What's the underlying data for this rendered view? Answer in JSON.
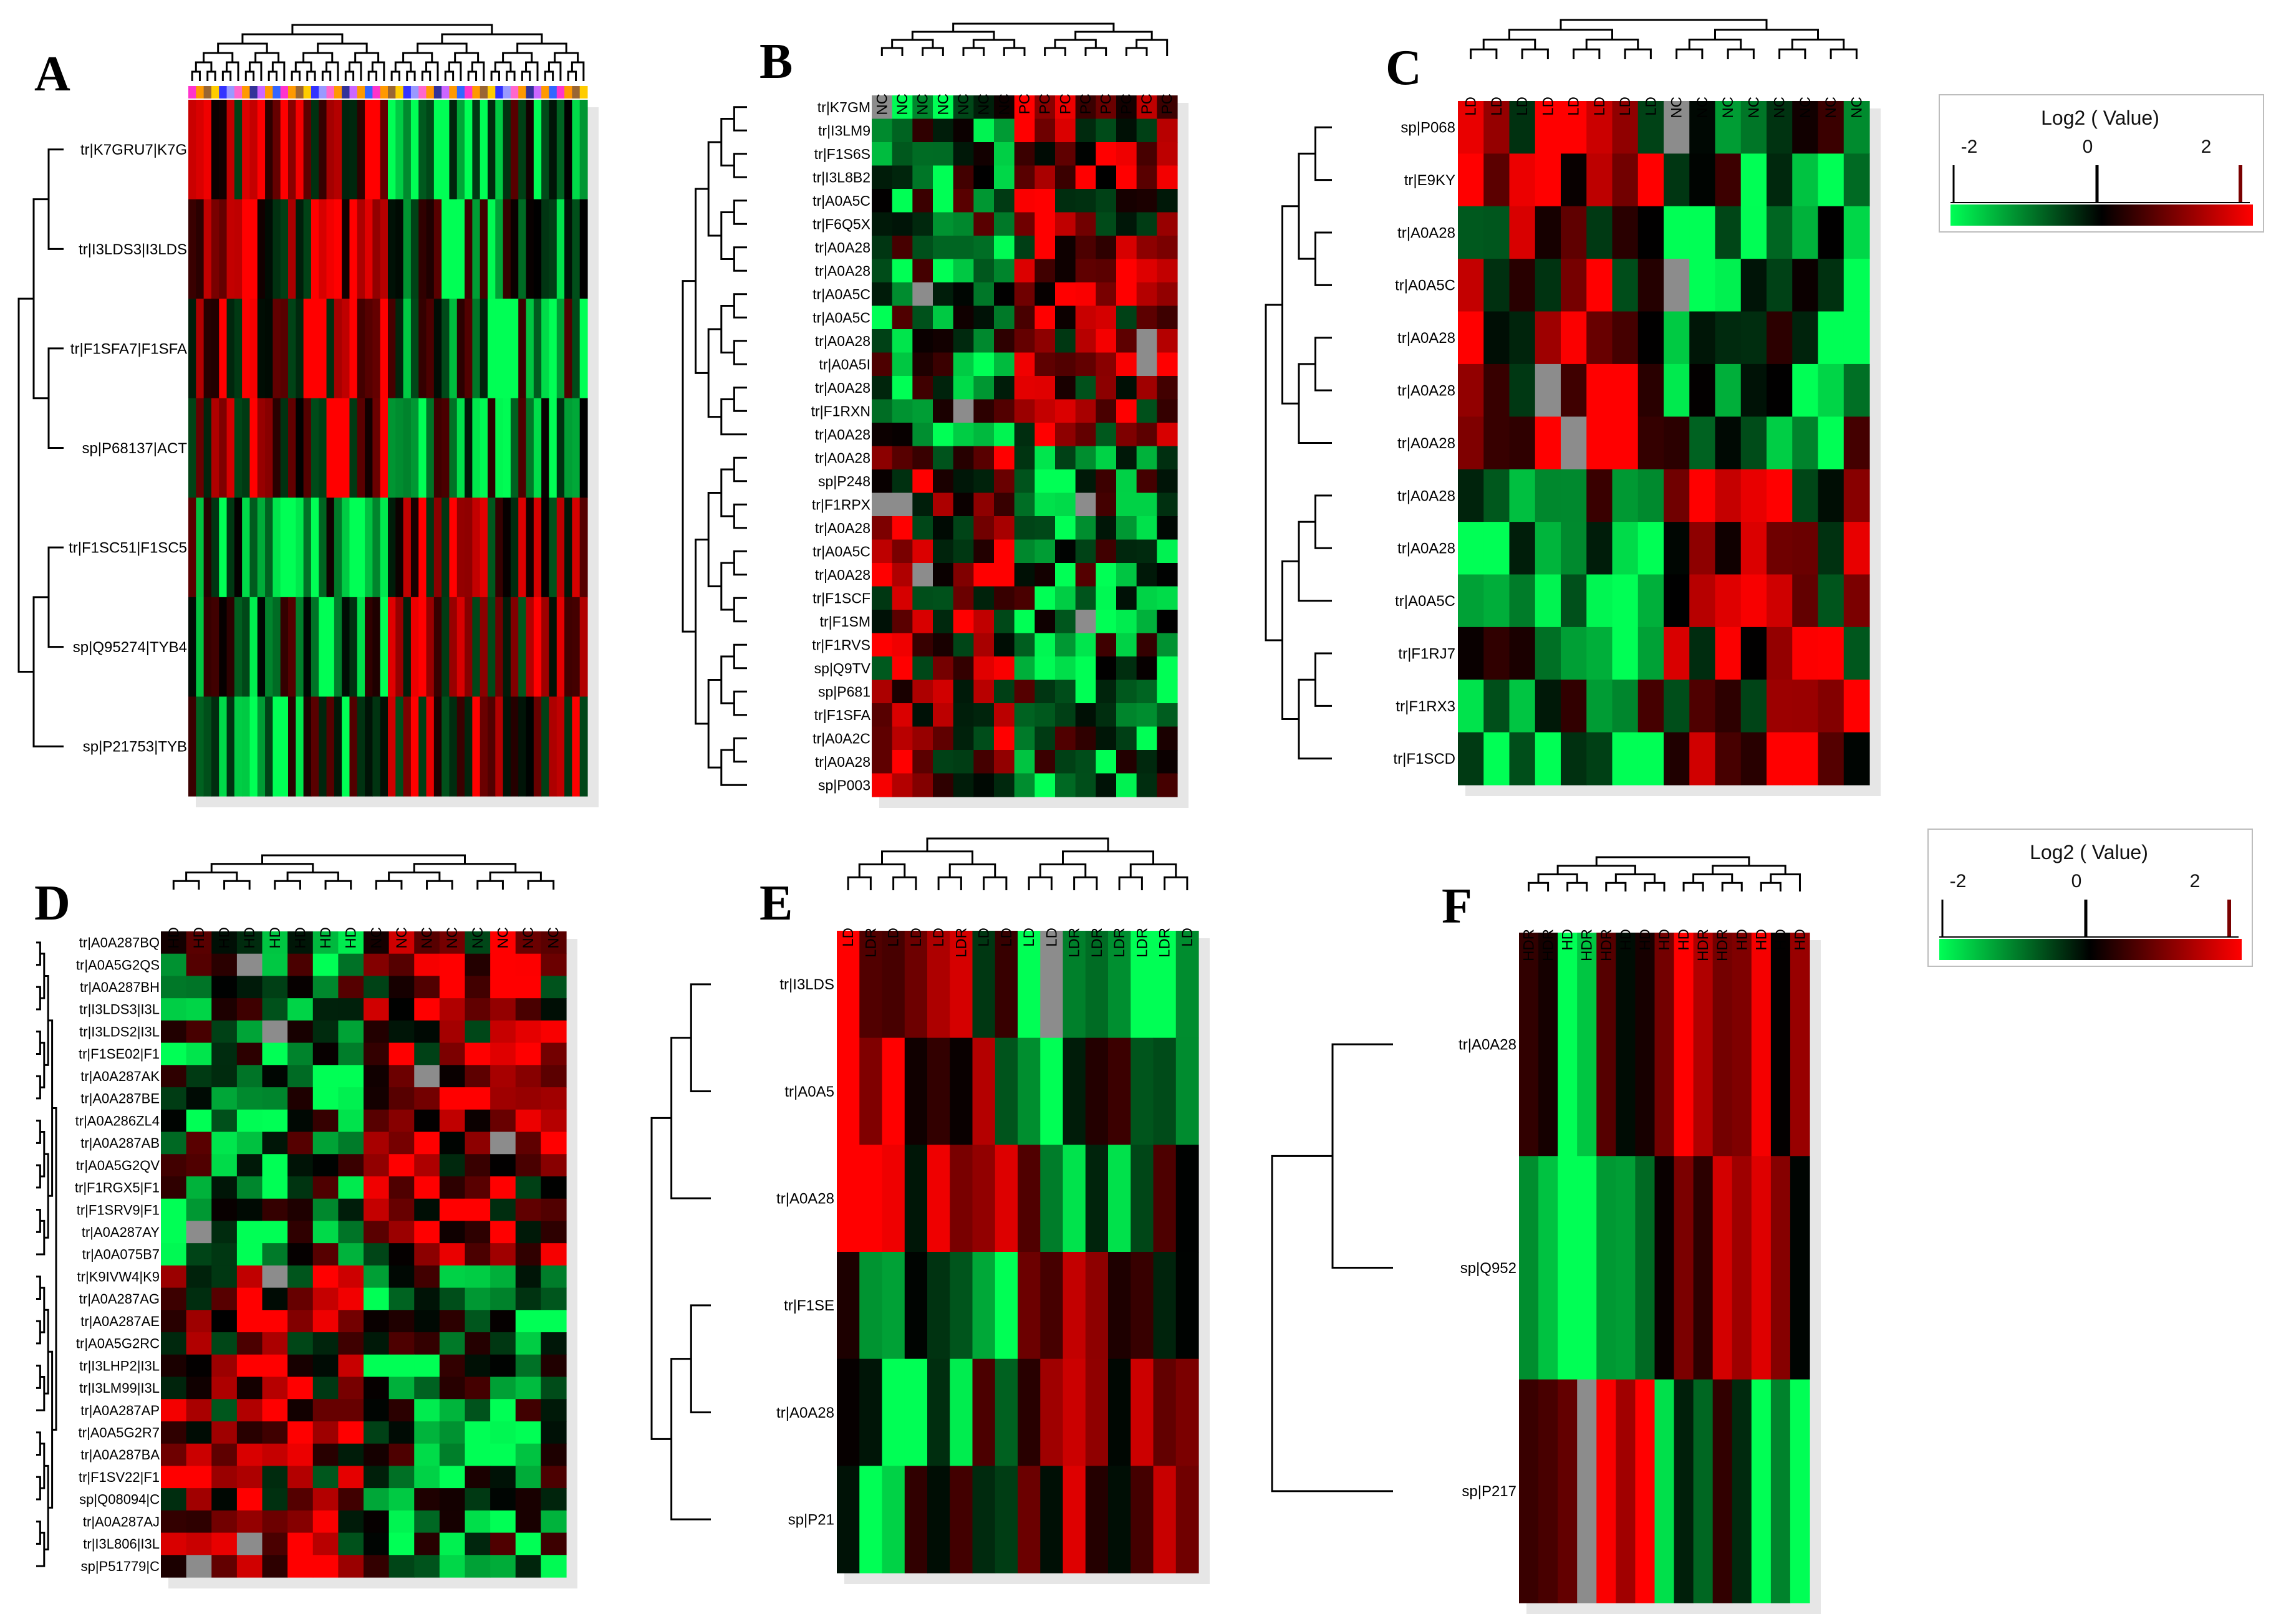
{
  "legend": {
    "title": "Log2 ( Value)",
    "ticks": [
      "-2",
      "0",
      "2"
    ],
    "low_color": "#00ff55",
    "mid_color": "#000000",
    "high_color": "#ff0000",
    "missing_color": "#8c8c8c"
  },
  "chart_data": [
    {
      "type": "heatmap",
      "panel": "A",
      "rows": [
        "tr|K7GRU7|K7G",
        "tr|I3LDS3|I3LDS",
        "tr|F1SFA7|F1SFA",
        "sp|P68137|ACT",
        "tr|F1SC51|F1SC5",
        "sp|Q95274|TYB4",
        "sp|P21753|TYB"
      ],
      "columns": [],
      "column_header_colors": [
        "#ff33cc",
        "#ff9900",
        "#996633",
        "#ffcc00",
        "#3333ff",
        "#9999ff",
        "#ff66cc",
        "#ff9900",
        "#333399",
        "#cc66ff",
        "#ff9900",
        "#3366ff"
      ],
      "value_range": [
        -2,
        2
      ]
    },
    {
      "type": "heatmap",
      "panel": "B",
      "rows": [
        "tr|K7GM",
        "tr|I3LM9",
        "tr|F1S6S",
        "tr|I3L8B2",
        "tr|A0A5C",
        "tr|F6Q5X",
        "tr|A0A28",
        "tr|A0A28",
        "tr|A0A5C",
        "tr|A0A5C",
        "tr|A0A28",
        "tr|A0A5I",
        "tr|A0A28",
        "tr|F1RXN",
        "tr|A0A28",
        "tr|A0A28",
        "sp|P248",
        "tr|F1RPX",
        "tr|A0A28",
        "tr|A0A5C",
        "tr|A0A28",
        "tr|F1SCF",
        "tr|F1SM",
        "tr|F1RVS",
        "sp|Q9TV",
        "sp|P681",
        "tr|F1SFA",
        "tr|A0A2C",
        "tr|A0A28",
        "sp|P003"
      ],
      "columns": [
        "NC",
        "NC",
        "NC",
        "NC",
        "NC",
        "NC",
        "NC",
        "PC",
        "PC",
        "PC",
        "PC",
        "PC",
        "PC",
        "PC",
        "PC"
      ],
      "value_range": [
        -2,
        2
      ]
    },
    {
      "type": "heatmap",
      "panel": "C",
      "rows": [
        "sp|P068",
        "tr|E9KY",
        "tr|A0A28",
        "tr|A0A5C",
        "tr|A0A28",
        "tr|A0A28",
        "tr|A0A28",
        "tr|A0A28",
        "tr|A0A28",
        "tr|A0A5C",
        "tr|F1RJ7",
        "tr|F1RX3",
        "tr|F1SCD"
      ],
      "columns": [
        "LD",
        "LD",
        "LD",
        "LD",
        "LD",
        "LD",
        "LD",
        "LD",
        "NC",
        "NC",
        "NC",
        "NC",
        "NC",
        "NC",
        "NC",
        "NC"
      ],
      "value_range": [
        -2,
        2
      ]
    },
    {
      "type": "heatmap",
      "panel": "D",
      "rows": [
        "tr|A0A287BQ",
        "tr|A0A5G2QS",
        "tr|A0A287BH",
        "tr|I3LDS3|I3L",
        "tr|I3LDS2|I3L",
        "tr|F1SE02|F1",
        "tr|A0A287AK",
        "tr|A0A287BE",
        "tr|A0A286ZL4",
        "tr|A0A287AB",
        "tr|A0A5G2QV",
        "tr|F1RGX5|F1",
        "tr|F1SRV9|F1",
        "tr|A0A287AY",
        "tr|A0A075B7",
        "tr|K9IVW4|K9",
        "tr|A0A287AG",
        "tr|A0A287AE",
        "tr|A0A5G2RC",
        "tr|I3LHP2|I3L",
        "tr|I3LM99|I3L",
        "tr|A0A287AP",
        "tr|A0A5G2R7",
        "tr|A0A287BA",
        "tr|F1SV22|F1",
        "sp|Q08094|C",
        "tr|A0A287AJ",
        "tr|I3L806|I3L",
        "sp|P51779|C"
      ],
      "columns": [
        "HD",
        "HD",
        "HD",
        "HD",
        "HD",
        "HD",
        "HD",
        "HD",
        "NC",
        "NC",
        "NC",
        "NC",
        "NC",
        "NC",
        "NC",
        "NC"
      ],
      "value_range": [
        -2,
        2
      ]
    },
    {
      "type": "heatmap",
      "panel": "E",
      "rows": [
        "tr|I3LDS",
        "tr|A0A5",
        "tr|A0A28",
        "tr|F1SE",
        "tr|A0A28",
        "sp|P21"
      ],
      "columns": [
        "LD",
        "LDR",
        "LD",
        "LD",
        "LD",
        "LDR",
        "LD",
        "LD",
        "LD",
        "LD",
        "LDR",
        "LDR",
        "LDR",
        "LDR",
        "LDR",
        "LD"
      ],
      "value_range": [
        -2,
        2
      ]
    },
    {
      "type": "heatmap",
      "panel": "F",
      "rows": [
        "tr|A0A28",
        "sp|Q952",
        "sp|P217"
      ],
      "columns": [
        "HDR",
        "HDR",
        "HD",
        "HDR",
        "HDR",
        "HD",
        "HD",
        "HD",
        "HD",
        "HDR",
        "HDR",
        "HD",
        "HD",
        "HD",
        "HD"
      ],
      "value_range": [
        -2,
        2
      ]
    }
  ]
}
